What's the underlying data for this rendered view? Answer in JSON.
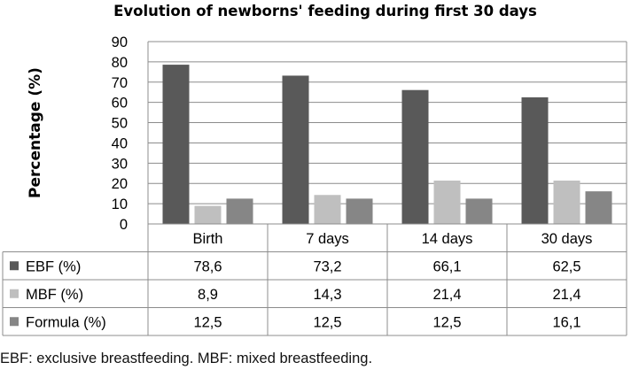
{
  "chart_data": {
    "type": "bar",
    "title": "Evolution of newborns' feeding during first 30 days",
    "xlabel": "",
    "ylabel": "Percentage (%)",
    "ylim": [
      0,
      90
    ],
    "yticks": [
      0,
      10,
      20,
      30,
      40,
      50,
      60,
      70,
      80,
      90
    ],
    "ytick_labels": [
      "0",
      "10",
      "20",
      "30",
      "40",
      "50",
      "60",
      "70",
      "80",
      "90"
    ],
    "grid": true,
    "categories": [
      "Birth",
      "7 days",
      "14 days",
      "30 days"
    ],
    "series": [
      {
        "name": "EBF (%)",
        "color": "#595959",
        "values": [
          78.6,
          73.2,
          66.1,
          62.5
        ],
        "labels": [
          "78,6",
          "73,2",
          "66,1",
          "62,5"
        ]
      },
      {
        "name": "MBF (%)",
        "color": "#bfbfbf",
        "values": [
          8.9,
          14.3,
          21.4,
          21.4
        ],
        "labels": [
          "8,9",
          "14,3",
          "21,4",
          "21,4"
        ]
      },
      {
        "name": "Formula (%)",
        "color": "#868686",
        "values": [
          12.5,
          12.5,
          12.5,
          16.1
        ],
        "labels": [
          "12,5",
          "12,5",
          "12,5",
          "16,1"
        ]
      }
    ],
    "legend": "data-table"
  },
  "footnote": "EBF: exclusive breastfeeding. MBF: mixed breastfeeding."
}
